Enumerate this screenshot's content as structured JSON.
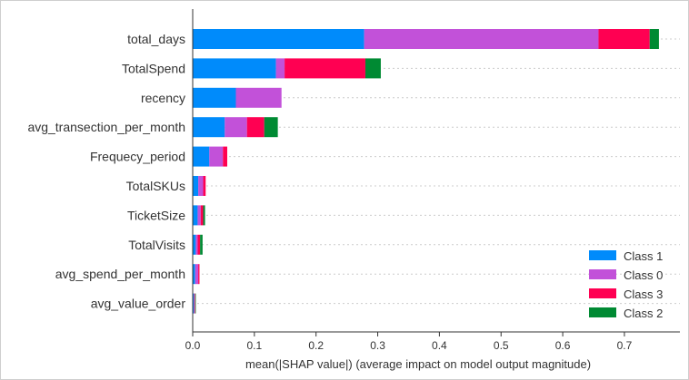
{
  "chart_data": {
    "type": "bar",
    "orientation": "horizontal",
    "stacked": true,
    "xlabel": "mean(|SHAP value|) (average impact on model output magnitude)",
    "xlim": [
      0,
      0.79
    ],
    "xticks": [
      "0.0",
      "0.1",
      "0.2",
      "0.3",
      "0.4",
      "0.5",
      "0.6",
      "0.7"
    ],
    "grid": "dashed",
    "legend_position": "bottom-right",
    "categories": [
      "total_days",
      "TotalSpend",
      "recency",
      "avg_transection_per_month",
      "Frequecy_period",
      "TotalSKUs",
      "TicketSize",
      "TotalVisits",
      "avg_spend_per_month",
      "avg_value_order"
    ],
    "series": [
      {
        "name": "Class 1",
        "color": "#008bfb",
        "values": [
          0.278,
          0.135,
          0.07,
          0.052,
          0.027,
          0.009,
          0.008,
          0.005,
          0.004,
          0.002
        ]
      },
      {
        "name": "Class 0",
        "color": "#c251d9",
        "values": [
          0.38,
          0.014,
          0.074,
          0.036,
          0.022,
          0.008,
          0.005,
          0.003,
          0.005,
          0.001
        ]
      },
      {
        "name": "Class 3",
        "color": "#ff0052",
        "values": [
          0.083,
          0.131,
          0.0,
          0.028,
          0.007,
          0.004,
          0.004,
          0.004,
          0.002,
          0.001
        ]
      },
      {
        "name": "Class 2",
        "color": "#008a33",
        "values": [
          0.015,
          0.025,
          0.0,
          0.022,
          0.0,
          0.0,
          0.003,
          0.004,
          0.0,
          0.001
        ]
      }
    ]
  }
}
